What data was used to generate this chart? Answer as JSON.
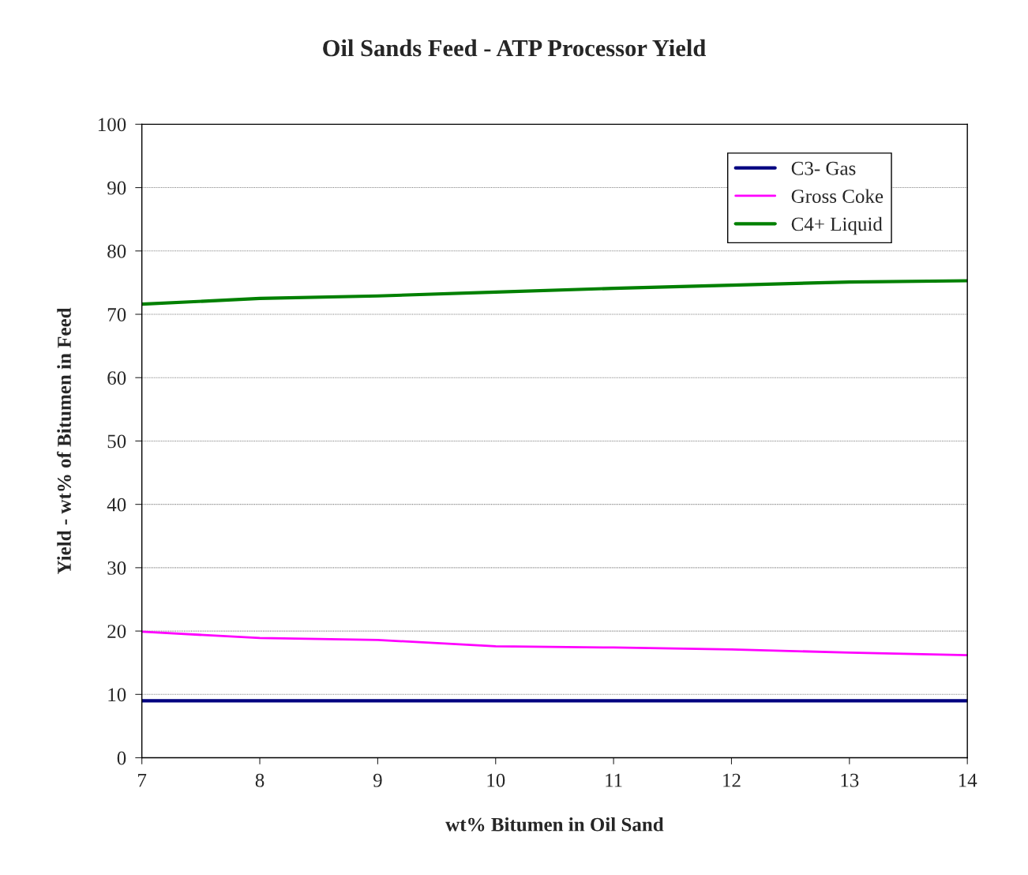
{
  "chart_data": {
    "type": "line",
    "title": "Oil Sands Feed - ATP Processor Yield",
    "xlabel": "wt% Bitumen in Oil Sand",
    "ylabel": "Yield - wt% of Bitumen in Feed",
    "x": [
      7,
      8,
      9,
      10,
      11,
      12,
      13,
      14
    ],
    "series": [
      {
        "name": "C3- Gas",
        "color": "#000080",
        "values": [
          9.0,
          9.0,
          9.0,
          9.0,
          9.0,
          9.0,
          9.0,
          9.0
        ]
      },
      {
        "name": "Gross Coke",
        "color": "#ff00ff",
        "values": [
          19.9,
          18.9,
          18.6,
          17.6,
          17.4,
          17.1,
          16.6,
          16.2
        ]
      },
      {
        "name": "C4+ Liquid",
        "color": "#008000",
        "values": [
          71.6,
          72.5,
          72.9,
          73.5,
          74.1,
          74.6,
          75.1,
          75.3
        ]
      }
    ],
    "xlim": [
      7,
      14
    ],
    "xticks": [
      7,
      8,
      9,
      10,
      11,
      12,
      13,
      14
    ],
    "ylim": [
      0,
      100
    ],
    "yticks": [
      0,
      10,
      20,
      30,
      40,
      50,
      60,
      70,
      80,
      90,
      100
    ],
    "grid": "y",
    "legend": "top right",
    "marker": "none",
    "line_style": "solid"
  }
}
